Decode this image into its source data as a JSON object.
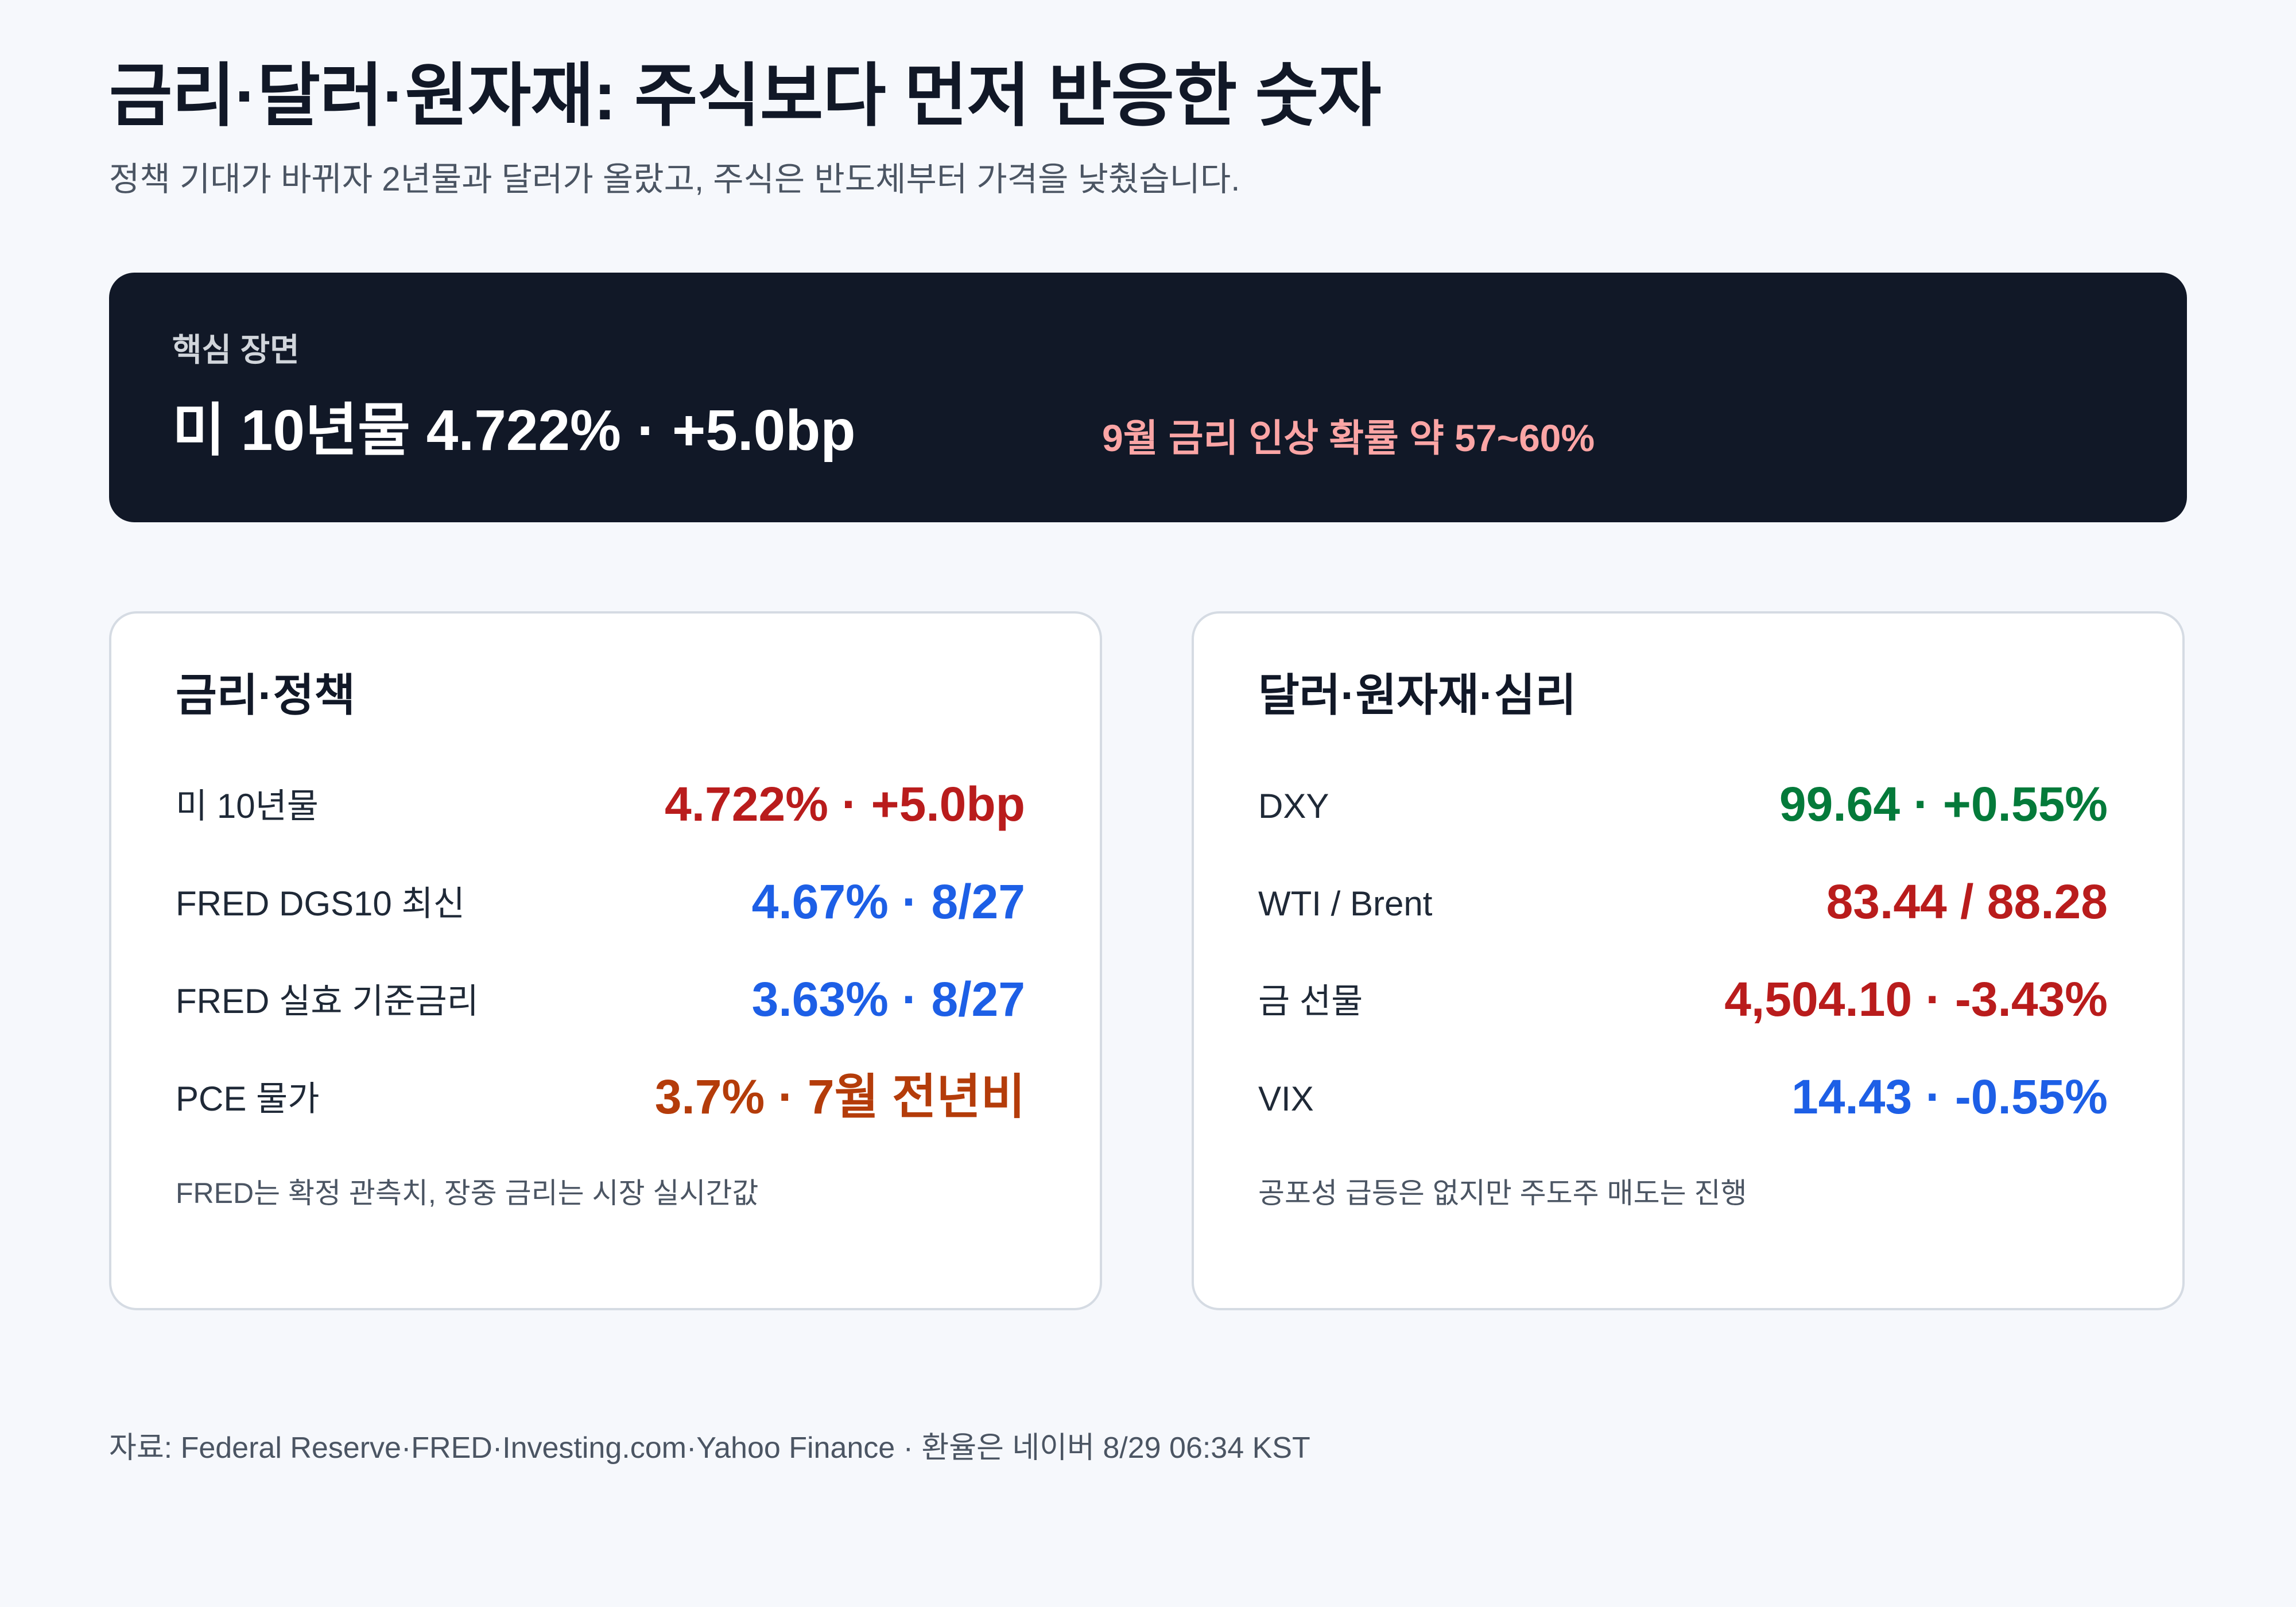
{
  "header": {
    "title": "금리·달러·원자재: 주식보다 먼저 반응한 숫자",
    "subtitle": "정책 기대가 바뀌자 2년물과 달러가 올랐고, 주식은 반도체부터 가격을 낮췄습니다."
  },
  "hero": {
    "label": "핵심 장면",
    "main": "미 10년물 4.722% · +5.0bp",
    "side": "9월 금리 인상 확률 약 57~60%"
  },
  "rates_card": {
    "title": "금리·정책",
    "rows": [
      {
        "label": "미 10년물",
        "value": "4.722% · +5.0bp"
      },
      {
        "label": "FRED DGS10 최신",
        "value": "4.67% · 8/27"
      },
      {
        "label": "FRED 실효 기준금리",
        "value": "3.63% · 8/27"
      },
      {
        "label": "PCE 물가",
        "value": "3.7% · 7월 전년비"
      }
    ],
    "note": "FRED는 확정 관측치, 장중 금리는 시장 실시간값"
  },
  "markets_card": {
    "title": "달러·원자재·심리",
    "rows": [
      {
        "label": "DXY",
        "value": "99.64 · +0.55%"
      },
      {
        "label": "WTI / Brent",
        "value": "83.44 / 88.28"
      },
      {
        "label": "금 선물",
        "value": "4,504.10 · -3.43%"
      },
      {
        "label": "VIX",
        "value": "14.43 · -0.55%"
      }
    ],
    "note": "공포성 급등은 없지만 주도주 매도는 진행"
  },
  "footer": {
    "source": "자료: Federal Reserve·FRED·Investing.com·Yahoo Finance · 환율은 네이버 8/29 06:34 KST"
  },
  "colors": {
    "background": "#f6f8fc",
    "hero_bg": "#111827",
    "hero_accent": "#fca5a5",
    "red": "#b91c1c",
    "blue": "#1d5fe6",
    "green": "#047a3a",
    "orange": "#b43c0a"
  }
}
